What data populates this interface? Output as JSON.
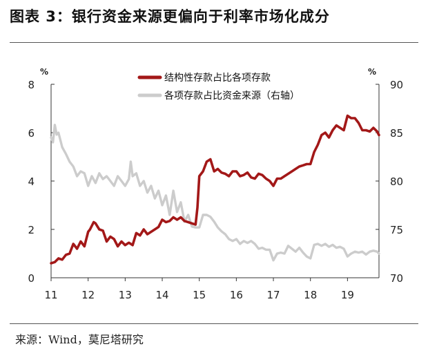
{
  "header": {
    "title": "图表 3：银行资金来源更偏向于利率市场化成分"
  },
  "footer": {
    "source_label": "来源：",
    "source_text": "Wind，莫尼塔研究"
  },
  "chart_data": {
    "type": "line",
    "title": "",
    "left_unit": "%",
    "right_unit": "%",
    "xlabel": "",
    "x_ticks": [
      "11",
      "12",
      "13",
      "14",
      "15",
      "16",
      "17",
      "18",
      "19"
    ],
    "x_range": [
      2011.0,
      2019.85
    ],
    "left_ylim": [
      0,
      8
    ],
    "left_yticks": [
      "0",
      "2",
      "4",
      "6",
      "8"
    ],
    "right_ylim": [
      70,
      90
    ],
    "right_yticks": [
      "70",
      "75",
      "80",
      "85",
      "90"
    ],
    "grid": false,
    "legend_position": "top-center",
    "colors": {
      "structured": "#a31818",
      "share": "#cccccc"
    },
    "series": [
      {
        "name": "结构性存款占比各项存款",
        "axis": "left",
        "x": [
          2011.0,
          2011.1,
          2011.2,
          2011.3,
          2011.4,
          2011.5,
          2011.6,
          2011.7,
          2011.8,
          2011.9,
          2012.0,
          2012.05,
          2012.15,
          2012.2,
          2012.3,
          2012.4,
          2012.5,
          2012.6,
          2012.7,
          2012.8,
          2012.9,
          2013.0,
          2013.1,
          2013.2,
          2013.3,
          2013.4,
          2013.5,
          2013.6,
          2013.7,
          2013.8,
          2013.9,
          2014.0,
          2014.1,
          2014.2,
          2014.3,
          2014.4,
          2014.5,
          2014.6,
          2014.7,
          2014.8,
          2014.9,
          2014.95,
          2015.0,
          2015.1,
          2015.2,
          2015.3,
          2015.4,
          2015.5,
          2015.6,
          2015.7,
          2015.8,
          2015.9,
          2016.0,
          2016.1,
          2016.2,
          2016.3,
          2016.4,
          2016.5,
          2016.6,
          2016.7,
          2016.8,
          2016.9,
          2017.0,
          2017.1,
          2017.2,
          2017.3,
          2017.4,
          2017.5,
          2017.6,
          2017.7,
          2017.8,
          2017.9,
          2018.0,
          2018.1,
          2018.2,
          2018.3,
          2018.4,
          2018.5,
          2018.6,
          2018.7,
          2018.8,
          2018.9,
          2019.0,
          2019.1,
          2019.2,
          2019.3,
          2019.4,
          2019.5,
          2019.6,
          2019.7,
          2019.8,
          2019.85
        ],
        "values": [
          0.6,
          0.65,
          0.8,
          0.75,
          0.95,
          1.0,
          1.4,
          1.2,
          1.5,
          1.3,
          1.9,
          2.0,
          2.3,
          2.25,
          2.0,
          1.95,
          1.5,
          1.7,
          1.6,
          1.3,
          1.5,
          1.35,
          1.45,
          1.35,
          1.85,
          1.75,
          2.0,
          1.8,
          1.9,
          2.0,
          2.1,
          2.4,
          2.3,
          2.35,
          2.5,
          2.4,
          2.5,
          2.35,
          2.3,
          2.25,
          2.2,
          2.9,
          4.2,
          4.4,
          4.8,
          4.9,
          4.4,
          4.5,
          4.35,
          4.3,
          4.2,
          4.4,
          4.4,
          4.2,
          4.25,
          4.35,
          4.15,
          4.1,
          4.3,
          4.25,
          4.1,
          4.0,
          3.8,
          4.1,
          4.1,
          4.2,
          4.3,
          4.4,
          4.5,
          4.6,
          4.65,
          4.7,
          4.7,
          5.2,
          5.5,
          5.9,
          6.0,
          5.8,
          6.1,
          6.3,
          6.2,
          6.1,
          6.7,
          6.6,
          6.6,
          6.4,
          6.1,
          6.1,
          6.05,
          6.2,
          6.05,
          5.9
        ]
      },
      {
        "name": "各项存款占比资金来源（右轴）",
        "axis": "right",
        "x": [
          2011.0,
          2011.05,
          2011.1,
          2011.15,
          2011.2,
          2011.3,
          2011.4,
          2011.5,
          2011.6,
          2011.7,
          2011.8,
          2011.9,
          2012.0,
          2012.1,
          2012.2,
          2012.3,
          2012.4,
          2012.5,
          2012.6,
          2012.7,
          2012.8,
          2012.9,
          2013.0,
          2013.1,
          2013.15,
          2013.2,
          2013.3,
          2013.4,
          2013.5,
          2013.6,
          2013.7,
          2013.8,
          2013.9,
          2014.0,
          2014.1,
          2014.2,
          2014.3,
          2014.4,
          2014.5,
          2014.6,
          2014.7,
          2014.8,
          2014.9,
          2015.0,
          2015.1,
          2015.2,
          2015.3,
          2015.4,
          2015.5,
          2015.6,
          2015.7,
          2015.8,
          2015.9,
          2016.0,
          2016.1,
          2016.2,
          2016.3,
          2016.4,
          2016.5,
          2016.6,
          2016.7,
          2016.8,
          2016.9,
          2017.0,
          2017.1,
          2017.2,
          2017.3,
          2017.4,
          2017.5,
          2017.6,
          2017.7,
          2017.8,
          2017.9,
          2018.0,
          2018.1,
          2018.2,
          2018.3,
          2018.4,
          2018.5,
          2018.6,
          2018.7,
          2018.8,
          2018.9,
          2019.0,
          2019.1,
          2019.2,
          2019.3,
          2019.4,
          2019.5,
          2019.6,
          2019.7,
          2019.8,
          2019.85
        ],
        "values": [
          84.5,
          84.0,
          85.8,
          84.8,
          85.0,
          83.5,
          82.8,
          82.0,
          81.5,
          80.5,
          81.0,
          80.8,
          79.5,
          80.5,
          79.8,
          80.8,
          80.2,
          80.5,
          80.0,
          79.5,
          80.5,
          80.0,
          79.5,
          80.2,
          82.0,
          80.5,
          80.8,
          79.5,
          80.0,
          78.8,
          79.5,
          78.2,
          79.0,
          77.5,
          78.5,
          76.5,
          79.0,
          76.8,
          77.8,
          75.8,
          76.5,
          75.3,
          75.2,
          75.2,
          76.5,
          76.5,
          76.3,
          75.8,
          75.2,
          74.8,
          74.5,
          74.0,
          73.8,
          74.0,
          73.5,
          73.8,
          73.6,
          73.8,
          73.5,
          73.0,
          73.1,
          72.9,
          72.9,
          71.8,
          72.5,
          72.6,
          72.5,
          73.3,
          73.0,
          72.7,
          73.1,
          72.6,
          72.2,
          72.0,
          73.4,
          73.5,
          73.3,
          73.5,
          73.2,
          73.4,
          73.1,
          73.2,
          73.0,
          72.2,
          72.5,
          72.7,
          72.6,
          72.7,
          72.4,
          72.7,
          72.8,
          72.7,
          72.5
        ]
      }
    ]
  }
}
